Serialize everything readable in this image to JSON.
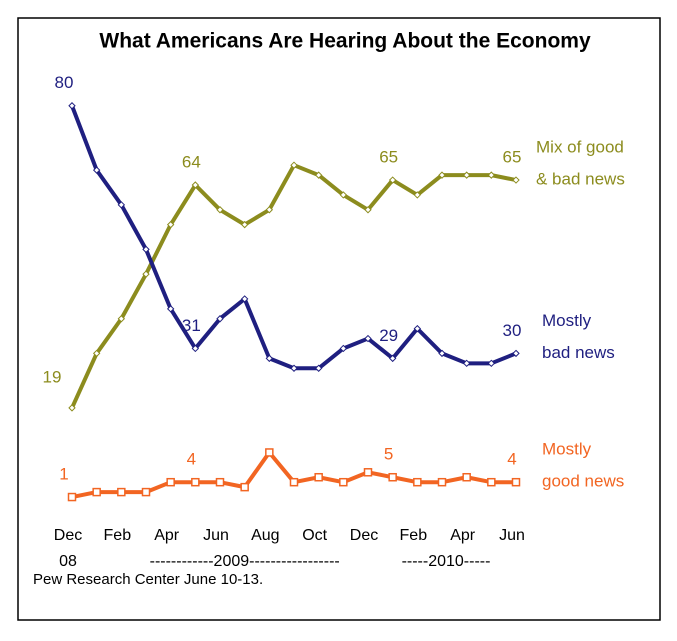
{
  "chart_data": {
    "type": "line",
    "title": "What Americans Are Hearing About the Economy",
    "source": "Pew Research Center June 10-13.",
    "categories": [
      "Dec",
      null,
      "Feb",
      null,
      "Apr",
      null,
      "Jun",
      null,
      "Aug",
      null,
      "Oct",
      null,
      "Dec",
      null,
      "Feb",
      null,
      "Apr",
      null,
      "Jun"
    ],
    "year_labels": [
      "08",
      "------------2009-----------------",
      "-----2010-----"
    ],
    "ylim": [
      0,
      85
    ],
    "series": [
      {
        "name": [
          "Mix of good",
          "& bad news"
        ],
        "color": "#8c8c1e",
        "values": [
          19,
          30,
          37,
          46,
          56,
          64,
          59,
          56,
          59,
          68,
          66,
          62,
          59,
          65,
          62,
          66,
          66,
          66,
          65
        ],
        "value_labels": {
          "0": "19",
          "5": "64",
          "13": "65",
          "18": "65"
        }
      },
      {
        "name": [
          "Mostly",
          "bad news"
        ],
        "color": "#1f1f80",
        "values": [
          80,
          67,
          60,
          51,
          39,
          31,
          37,
          41,
          29,
          27,
          27,
          31,
          33,
          29,
          35,
          30,
          28,
          28,
          30
        ],
        "value_labels": {
          "0": "80",
          "5": "31",
          "13": "29",
          "18": "30"
        }
      },
      {
        "name": [
          "Mostly",
          "good news"
        ],
        "color": "#f26522",
        "values": [
          1,
          2,
          2,
          2,
          4,
          4,
          4,
          3,
          10,
          4,
          5,
          4,
          6,
          5,
          4,
          4,
          5,
          4,
          4
        ],
        "value_labels": {
          "0": "1",
          "5": "4",
          "13": "5",
          "18": "4"
        }
      }
    ]
  }
}
